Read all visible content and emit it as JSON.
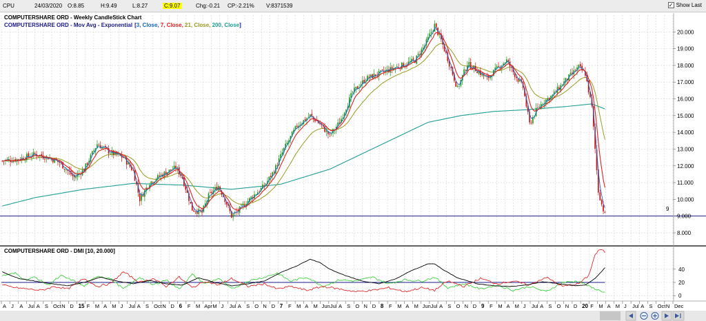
{
  "header": {
    "symbol": "CPU",
    "date": "24/03/2020",
    "open": "O:8.85",
    "high": "H:9.49",
    "low": "L:8.27",
    "close": "C:9.07",
    "change": "Chg:-0.21",
    "change_pct": "CP:-2.21%",
    "volume": "V:8371539",
    "show_last": "Show Last"
  },
  "colors": {
    "up": "#1a9a1a",
    "down": "#d01010",
    "ema3": "#1565c0",
    "ema7": "#e0201e",
    "ema21": "#9a9a20",
    "ema200": "#1f9e94",
    "di_plus": "#3cd23c",
    "di_minus": "#e02a2a",
    "adx": "#000000",
    "threshold": "#1a1a8a"
  },
  "chart_data": [
    {
      "type": "candlestick",
      "title": "COMPUTERSHARE ORD - Weekly CandleStick Chart",
      "legend": {
        "prefix": "COMPUTERSHARE ORD - Mov Avg - Exponential",
        "open": "[",
        "items": [
          {
            "text": "3, Close, ",
            "color": "#1565c0"
          },
          {
            "text": "7, Close, ",
            "color": "#e0201e"
          },
          {
            "text": "21, Close, ",
            "color": "#9a9a20"
          },
          {
            "text": "200, Close",
            "color": "#1f9e94"
          }
        ],
        "close": "]"
      },
      "y_ticks": [
        "8.000",
        "9.000",
        "10.000",
        "11.000",
        "12.000",
        "13.000",
        "14.000",
        "15.000",
        "16.000",
        "17.000",
        "18.000",
        "19.000",
        "20.000"
      ],
      "ylim": [
        7.3,
        21.0
      ],
      "horizontal_line": {
        "value": 9,
        "label": "9"
      },
      "price_path": [
        [
          0,
          12.3
        ],
        [
          10,
          12.4
        ],
        [
          20,
          12.7
        ],
        [
          28,
          12.5
        ],
        [
          35,
          12.2
        ],
        [
          44,
          11.3
        ],
        [
          50,
          11.8
        ],
        [
          58,
          13.3
        ],
        [
          66,
          12.8
        ],
        [
          74,
          12.5
        ],
        [
          80,
          11.7
        ],
        [
          84,
          10.0
        ],
        [
          90,
          11.0
        ],
        [
          98,
          11.5
        ],
        [
          106,
          11.9
        ],
        [
          110,
          11.3
        ],
        [
          116,
          9.4
        ],
        [
          122,
          9.2
        ],
        [
          126,
          10.2
        ],
        [
          132,
          10.8
        ],
        [
          136,
          10.0
        ],
        [
          140,
          9.0
        ],
        [
          144,
          9.3
        ],
        [
          152,
          10.1
        ],
        [
          160,
          10.8
        ],
        [
          166,
          11.7
        ],
        [
          172,
          13.0
        ],
        [
          180,
          14.4
        ],
        [
          188,
          15.0
        ],
        [
          194,
          14.5
        ],
        [
          200,
          13.8
        ],
        [
          206,
          14.6
        ],
        [
          214,
          16.4
        ],
        [
          222,
          17.2
        ],
        [
          230,
          17.5
        ],
        [
          238,
          17.8
        ],
        [
          244,
          18.0
        ],
        [
          252,
          18.3
        ],
        [
          258,
          19.2
        ],
        [
          264,
          20.4
        ],
        [
          268,
          19.5
        ],
        [
          272,
          18.4
        ],
        [
          278,
          16.6
        ],
        [
          284,
          18.1
        ],
        [
          290,
          17.7
        ],
        [
          296,
          17.2
        ],
        [
          302,
          17.8
        ],
        [
          308,
          18.3
        ],
        [
          312,
          17.6
        ],
        [
          318,
          16.7
        ],
        [
          322,
          14.5
        ],
        [
          326,
          15.3
        ],
        [
          330,
          15.8
        ],
        [
          336,
          16.2
        ],
        [
          342,
          16.9
        ],
        [
          348,
          17.5
        ],
        [
          352,
          17.9
        ],
        [
          356,
          17.5
        ],
        [
          360,
          15.5
        ],
        [
          362,
          13.0
        ],
        [
          364,
          10.5
        ],
        [
          366,
          9.7
        ],
        [
          368,
          9.07
        ]
      ],
      "ema200": [
        [
          0,
          9.6
        ],
        [
          20,
          10.1
        ],
        [
          50,
          10.6
        ],
        [
          80,
          10.95
        ],
        [
          110,
          10.85
        ],
        [
          140,
          10.6
        ],
        [
          170,
          10.9
        ],
        [
          200,
          11.8
        ],
        [
          230,
          13.2
        ],
        [
          260,
          14.6
        ],
        [
          280,
          15.0
        ],
        [
          300,
          15.25
        ],
        [
          320,
          15.35
        ],
        [
          345,
          15.55
        ],
        [
          360,
          15.7
        ],
        [
          368,
          15.4
        ]
      ],
      "x_labels": [
        {
          "t": "A",
          "b": false
        },
        {
          "t": "J",
          "b": false
        },
        {
          "t": "A",
          "b": false
        },
        {
          "t": "Jul",
          "b": false
        },
        {
          "t": "A",
          "b": false
        },
        {
          "t": "S",
          "b": false
        },
        {
          "t": "Oct",
          "b": false
        },
        {
          "t": "N",
          "b": false
        },
        {
          "t": "D",
          "b": false
        },
        {
          "t": "15",
          "b": true
        },
        {
          "t": "F",
          "b": false
        },
        {
          "t": "M",
          "b": false
        },
        {
          "t": "A",
          "b": false
        },
        {
          "t": "M",
          "b": false
        },
        {
          "t": "J",
          "b": false
        },
        {
          "t": "Jul",
          "b": false
        },
        {
          "t": "A",
          "b": false
        },
        {
          "t": "S",
          "b": false
        },
        {
          "t": "Oct",
          "b": false
        },
        {
          "t": "N",
          "b": false
        },
        {
          "t": "D",
          "b": false
        },
        {
          "t": "6",
          "b": true
        },
        {
          "t": "F",
          "b": false
        },
        {
          "t": "M",
          "b": false
        },
        {
          "t": "Apr",
          "b": false
        },
        {
          "t": "M",
          "b": false
        },
        {
          "t": "J",
          "b": false
        },
        {
          "t": "Jul",
          "b": false
        },
        {
          "t": "A",
          "b": false
        },
        {
          "t": "S",
          "b": false
        },
        {
          "t": "O",
          "b": false
        },
        {
          "t": "N",
          "b": false
        },
        {
          "t": "D",
          "b": false
        },
        {
          "t": "7",
          "b": true
        },
        {
          "t": "F",
          "b": false
        },
        {
          "t": "M",
          "b": false
        },
        {
          "t": "A",
          "b": false
        },
        {
          "t": "M",
          "b": false
        },
        {
          "t": "Jun",
          "b": false
        },
        {
          "t": "Jul",
          "b": false
        },
        {
          "t": "A",
          "b": false
        },
        {
          "t": "S",
          "b": false
        },
        {
          "t": "O",
          "b": false
        },
        {
          "t": "N",
          "b": false
        },
        {
          "t": "D",
          "b": false
        },
        {
          "t": "8",
          "b": true
        },
        {
          "t": "F",
          "b": false
        },
        {
          "t": "M",
          "b": false
        },
        {
          "t": "A",
          "b": false
        },
        {
          "t": "M",
          "b": false
        },
        {
          "t": "Jun",
          "b": false
        },
        {
          "t": "Jul",
          "b": false
        },
        {
          "t": "A",
          "b": false
        },
        {
          "t": "S",
          "b": false
        },
        {
          "t": "O",
          "b": false
        },
        {
          "t": "N",
          "b": false
        },
        {
          "t": "D",
          "b": false
        },
        {
          "t": "9",
          "b": true
        },
        {
          "t": "F",
          "b": false
        },
        {
          "t": "M",
          "b": false
        },
        {
          "t": "A",
          "b": false
        },
        {
          "t": "M",
          "b": false
        },
        {
          "t": "J",
          "b": false
        },
        {
          "t": "Jul",
          "b": false
        },
        {
          "t": "A",
          "b": false
        },
        {
          "t": "S",
          "b": false
        },
        {
          "t": "O",
          "b": false
        },
        {
          "t": "N",
          "b": false
        },
        {
          "t": "D",
          "b": false
        },
        {
          "t": "20",
          "b": true
        },
        {
          "t": "F",
          "b": false
        },
        {
          "t": "M",
          "b": false
        },
        {
          "t": "A",
          "b": false
        },
        {
          "t": "M",
          "b": false
        },
        {
          "t": "J",
          "b": false
        },
        {
          "t": "Jul",
          "b": false
        },
        {
          "t": "A",
          "b": false
        },
        {
          "t": "S",
          "b": false
        },
        {
          "t": "Oct",
          "b": false
        },
        {
          "t": "N",
          "b": false
        },
        {
          "t": "Dec",
          "b": false
        }
      ],
      "weeks_shown": 369,
      "weeks_total": 410
    },
    {
      "type": "line",
      "title": "COMPUTERSHARE ORD - DMI [10, 20.000]",
      "y_ticks": [
        "0",
        "20",
        "40"
      ],
      "ylim": [
        -6,
        72
      ],
      "threshold": 20,
      "adx": [
        [
          0,
          36
        ],
        [
          10,
          26
        ],
        [
          20,
          22
        ],
        [
          30,
          18
        ],
        [
          40,
          15
        ],
        [
          50,
          20
        ],
        [
          60,
          28
        ],
        [
          70,
          22
        ],
        [
          80,
          18
        ],
        [
          90,
          23
        ],
        [
          100,
          18
        ],
        [
          110,
          16
        ],
        [
          120,
          27
        ],
        [
          130,
          20
        ],
        [
          140,
          15
        ],
        [
          150,
          18
        ],
        [
          160,
          22
        ],
        [
          170,
          35
        ],
        [
          180,
          45
        ],
        [
          188,
          55
        ],
        [
          194,
          50
        ],
        [
          200,
          40
        ],
        [
          210,
          30
        ],
        [
          220,
          22
        ],
        [
          230,
          18
        ],
        [
          240,
          25
        ],
        [
          250,
          38
        ],
        [
          260,
          48
        ],
        [
          264,
          48
        ],
        [
          270,
          38
        ],
        [
          278,
          27
        ],
        [
          290,
          18
        ],
        [
          300,
          15
        ],
        [
          310,
          14
        ],
        [
          320,
          16
        ],
        [
          330,
          21
        ],
        [
          340,
          18
        ],
        [
          350,
          15
        ],
        [
          356,
          16
        ],
        [
          362,
          26
        ],
        [
          368,
          42
        ]
      ],
      "di_plus": [
        [
          0,
          30
        ],
        [
          8,
          34
        ],
        [
          14,
          24
        ],
        [
          20,
          28
        ],
        [
          28,
          16
        ],
        [
          36,
          30
        ],
        [
          44,
          22
        ],
        [
          50,
          14
        ],
        [
          58,
          30
        ],
        [
          66,
          26
        ],
        [
          74,
          10
        ],
        [
          84,
          28
        ],
        [
          92,
          16
        ],
        [
          100,
          24
        ],
        [
          108,
          10
        ],
        [
          116,
          32
        ],
        [
          124,
          18
        ],
        [
          132,
          26
        ],
        [
          140,
          10
        ],
        [
          150,
          22
        ],
        [
          160,
          28
        ],
        [
          168,
          34
        ],
        [
          176,
          22
        ],
        [
          186,
          28
        ],
        [
          196,
          14
        ],
        [
          206,
          24
        ],
        [
          216,
          22
        ],
        [
          226,
          28
        ],
        [
          236,
          18
        ],
        [
          246,
          24
        ],
        [
          256,
          22
        ],
        [
          264,
          28
        ],
        [
          272,
          12
        ],
        [
          282,
          18
        ],
        [
          292,
          10
        ],
        [
          302,
          16
        ],
        [
          312,
          8
        ],
        [
          322,
          14
        ],
        [
          332,
          6
        ],
        [
          342,
          20
        ],
        [
          352,
          22
        ],
        [
          360,
          12
        ],
        [
          368,
          5
        ]
      ],
      "di_minus": [
        [
          0,
          16
        ],
        [
          8,
          12
        ],
        [
          16,
          10
        ],
        [
          24,
          8
        ],
        [
          32,
          14
        ],
        [
          40,
          10
        ],
        [
          50,
          26
        ],
        [
          58,
          14
        ],
        [
          66,
          18
        ],
        [
          74,
          36
        ],
        [
          84,
          20
        ],
        [
          92,
          26
        ],
        [
          100,
          14
        ],
        [
          108,
          28
        ],
        [
          116,
          12
        ],
        [
          124,
          22
        ],
        [
          132,
          16
        ],
        [
          140,
          26
        ],
        [
          150,
          14
        ],
        [
          160,
          18
        ],
        [
          168,
          10
        ],
        [
          176,
          14
        ],
        [
          186,
          8
        ],
        [
          196,
          14
        ],
        [
          206,
          10
        ],
        [
          216,
          6
        ],
        [
          226,
          8
        ],
        [
          236,
          12
        ],
        [
          246,
          6
        ],
        [
          256,
          12
        ],
        [
          264,
          8
        ],
        [
          272,
          22
        ],
        [
          282,
          14
        ],
        [
          292,
          26
        ],
        [
          302,
          18
        ],
        [
          312,
          22
        ],
        [
          322,
          16
        ],
        [
          332,
          28
        ],
        [
          342,
          14
        ],
        [
          352,
          18
        ],
        [
          358,
          30
        ],
        [
          362,
          62
        ],
        [
          365,
          70
        ],
        [
          368,
          66
        ]
      ]
    }
  ]
}
